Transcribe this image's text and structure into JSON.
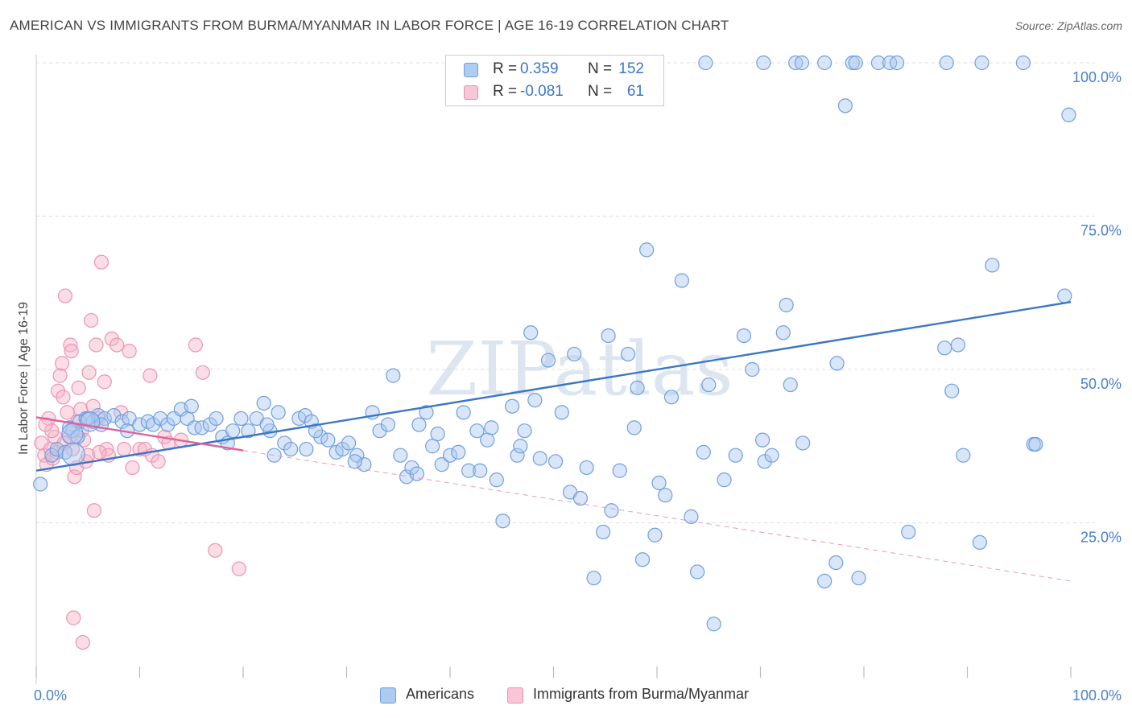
{
  "header": {
    "title": "AMERICAN VS IMMIGRANTS FROM BURMA/MYANMAR IN LABOR FORCE | AGE 16-19 CORRELATION CHART",
    "source": "Source: ZipAtlas.com"
  },
  "legend": {
    "r_label": "R =",
    "n_label": "N =",
    "rows": [
      {
        "r": "0.359",
        "n": "152",
        "fill": "#aecbf0",
        "stroke": "#6a9fe0"
      },
      {
        "r": "-0.081",
        "n": "61",
        "fill": "#f8c6d6",
        "stroke": "#e891ae"
      }
    ]
  },
  "bottom_legend": [
    {
      "label": "Americans",
      "fill": "#aecbf0",
      "stroke": "#6a9fe0"
    },
    {
      "label": "Immigrants from Burma/Myanmar",
      "fill": "#f8c6d6",
      "stroke": "#e891ae"
    }
  ],
  "chart_data": {
    "type": "scatter",
    "ylabel": "In Labor Force | Age 16-19",
    "xlabel": "",
    "x_ticks": [
      "0.0%",
      "100.0%"
    ],
    "y_ticks": [
      "25.0%",
      "50.0%",
      "75.0%",
      "100.0%"
    ],
    "xlim": [
      0,
      100
    ],
    "ylim": [
      0,
      100
    ],
    "grid": true,
    "watermark": "ZIPatlas",
    "colors": {
      "americans": "#3b76c9",
      "burma": "#e0609a"
    },
    "series": [
      {
        "name": "Americans",
        "trend": {
          "x0": 0,
          "y0": 33.5,
          "x1": 100,
          "y1": 61
        },
        "points": [
          [
            0.4,
            31.3
          ],
          [
            1.5,
            36
          ],
          [
            2,
            37
          ],
          [
            2.8,
            36.5
          ],
          [
            3.5,
            40
          ],
          [
            4.2,
            41.5
          ],
          [
            4.8,
            42
          ],
          [
            5.5,
            41.5
          ],
          [
            6,
            42.5
          ],
          [
            6.6,
            42
          ],
          [
            7.5,
            42.5
          ],
          [
            8.3,
            41.5
          ],
          [
            9,
            42
          ],
          [
            10,
            41
          ],
          [
            10.8,
            41.5
          ],
          [
            11.3,
            41
          ],
          [
            12,
            42
          ],
          [
            12.7,
            41
          ],
          [
            13.3,
            42
          ],
          [
            14,
            43.5
          ],
          [
            14.6,
            42
          ],
          [
            15.3,
            40.5
          ],
          [
            16,
            40.5
          ],
          [
            16.8,
            41
          ],
          [
            17.4,
            42
          ],
          [
            18,
            39
          ],
          [
            18.5,
            38
          ],
          [
            19,
            40
          ],
          [
            19.8,
            42
          ],
          [
            20.5,
            40
          ],
          [
            21.3,
            42
          ],
          [
            22,
            44.5
          ],
          [
            22.6,
            40
          ],
          [
            23.4,
            43
          ],
          [
            24,
            38
          ],
          [
            24.6,
            37
          ],
          [
            25.4,
            42
          ],
          [
            26,
            42.5
          ],
          [
            26.6,
            41.5
          ],
          [
            27.5,
            39
          ],
          [
            28.2,
            38.5
          ],
          [
            29,
            36.5
          ],
          [
            29.6,
            37
          ],
          [
            30.2,
            38
          ],
          [
            31,
            36
          ],
          [
            31.7,
            34.5
          ],
          [
            32.5,
            43
          ],
          [
            33.2,
            40
          ],
          [
            34,
            41
          ],
          [
            34.5,
            49
          ],
          [
            35.2,
            36
          ],
          [
            35.8,
            32.5
          ],
          [
            36.3,
            34
          ],
          [
            37,
            41
          ],
          [
            37.7,
            43
          ],
          [
            38.3,
            37.5
          ],
          [
            38.8,
            39.5
          ],
          [
            39.2,
            34.5
          ],
          [
            40,
            36
          ],
          [
            40.8,
            36.5
          ],
          [
            41.3,
            43
          ],
          [
            41.8,
            33.5
          ],
          [
            42.6,
            40
          ],
          [
            42.9,
            33.5
          ],
          [
            43.6,
            38.5
          ],
          [
            44,
            40.5
          ],
          [
            45.1,
            25.3
          ],
          [
            46,
            44
          ],
          [
            46.5,
            36
          ],
          [
            47.2,
            40
          ],
          [
            47.8,
            56
          ],
          [
            48.2,
            45
          ],
          [
            48.7,
            35.5
          ],
          [
            49.5,
            51.5
          ],
          [
            50.2,
            35
          ],
          [
            50.8,
            43
          ],
          [
            51.6,
            30
          ],
          [
            52,
            52.5
          ],
          [
            52.6,
            29
          ],
          [
            53.9,
            16
          ],
          [
            54.8,
            23.5
          ],
          [
            55.3,
            55.5
          ],
          [
            56.4,
            33.5
          ],
          [
            57.2,
            52.5
          ],
          [
            57.8,
            40.5
          ],
          [
            58.1,
            47
          ],
          [
            58.6,
            19
          ],
          [
            59,
            69.5
          ],
          [
            59.8,
            23
          ],
          [
            60.2,
            31.5
          ],
          [
            60.8,
            29.5
          ],
          [
            61.4,
            45.5
          ],
          [
            62.4,
            64.5
          ],
          [
            63.3,
            26
          ],
          [
            63.9,
            17
          ],
          [
            64.5,
            36.5
          ],
          [
            65,
            47.5
          ],
          [
            65.5,
            8.5
          ],
          [
            66.5,
            32
          ],
          [
            68.4,
            55.5
          ],
          [
            69.2,
            50
          ],
          [
            70.2,
            38.5
          ],
          [
            70.4,
            35
          ],
          [
            71.1,
            36
          ],
          [
            72.2,
            56
          ],
          [
            72.5,
            60.5
          ],
          [
            72.9,
            47.5
          ],
          [
            74.1,
            38
          ],
          [
            76.2,
            15.5
          ],
          [
            77.3,
            18.5
          ],
          [
            77.4,
            51
          ],
          [
            78.2,
            93
          ],
          [
            79.5,
            16
          ],
          [
            84.3,
            23.5
          ],
          [
            87.8,
            53.5
          ],
          [
            88.5,
            46.5
          ],
          [
            89.1,
            54
          ],
          [
            89.6,
            36
          ],
          [
            91.2,
            21.8
          ],
          [
            92.4,
            67
          ],
          [
            96.4,
            37.8
          ],
          [
            96.6,
            37.8
          ],
          [
            99.4,
            62
          ],
          [
            99.8,
            91.5
          ],
          [
            64.7,
            100
          ],
          [
            70.3,
            100
          ],
          [
            73.4,
            100
          ],
          [
            74,
            100
          ],
          [
            76.2,
            100
          ],
          [
            78.9,
            100
          ],
          [
            79.2,
            100
          ],
          [
            81.4,
            100
          ],
          [
            82.5,
            100
          ],
          [
            83.2,
            100
          ],
          [
            88,
            100
          ],
          [
            91.4,
            100
          ],
          [
            95.4,
            100
          ],
          [
            47.6,
            100
          ],
          [
            3.2,
            40.5
          ],
          [
            4,
            39
          ],
          [
            5,
            42
          ],
          [
            6.3,
            41
          ],
          [
            8.8,
            40
          ],
          [
            15,
            44
          ],
          [
            23,
            36
          ],
          [
            27,
            40
          ],
          [
            30.8,
            35
          ],
          [
            36.8,
            33
          ],
          [
            44.5,
            32
          ],
          [
            46.8,
            37.5
          ],
          [
            53.2,
            34
          ],
          [
            55.6,
            27
          ],
          [
            67.6,
            36
          ],
          [
            26.1,
            37
          ],
          [
            22.3,
            41
          ]
        ]
      },
      {
        "name": "Immigrants from Burma/Myanmar",
        "trend": {
          "x0": 0,
          "y0": 42.2,
          "x1": 20,
          "y1": 36.8,
          "dash_x1": 100,
          "dash_y1": 15.5
        },
        "points": [
          [
            0.5,
            38
          ],
          [
            0.8,
            36
          ],
          [
            1,
            34.5
          ],
          [
            1.2,
            42
          ],
          [
            1.4,
            37
          ],
          [
            1.6,
            35.5
          ],
          [
            1.8,
            39
          ],
          [
            2,
            36.5
          ],
          [
            2.1,
            46.5
          ],
          [
            2.3,
            49
          ],
          [
            2.5,
            51
          ],
          [
            2.6,
            45.5
          ],
          [
            2.8,
            62
          ],
          [
            3,
            43
          ],
          [
            3.2,
            39
          ],
          [
            3.3,
            54
          ],
          [
            3.4,
            53
          ],
          [
            3.5,
            37
          ],
          [
            3.7,
            32.5
          ],
          [
            3.9,
            34
          ],
          [
            4,
            41.5
          ],
          [
            4.1,
            47
          ],
          [
            4.3,
            43.5
          ],
          [
            4.4,
            40
          ],
          [
            4.6,
            38.5
          ],
          [
            4.8,
            35
          ],
          [
            5,
            36
          ],
          [
            5.1,
            49.5
          ],
          [
            5.3,
            58
          ],
          [
            5.5,
            44
          ],
          [
            5.6,
            27
          ],
          [
            5.8,
            54
          ],
          [
            6,
            42
          ],
          [
            6.3,
            67.5
          ],
          [
            6.6,
            48
          ],
          [
            6.8,
            37
          ],
          [
            7,
            36
          ],
          [
            7.3,
            55
          ],
          [
            7.8,
            54
          ],
          [
            8.2,
            43
          ],
          [
            8.5,
            37
          ],
          [
            9,
            53
          ],
          [
            9.3,
            34
          ],
          [
            10,
            37
          ],
          [
            10.5,
            37
          ],
          [
            11,
            49
          ],
          [
            11.2,
            36
          ],
          [
            11.8,
            35
          ],
          [
            12.4,
            39
          ],
          [
            12.8,
            38
          ],
          [
            14,
            38.5
          ],
          [
            15.4,
            54
          ],
          [
            16.1,
            49.5
          ],
          [
            17.3,
            20.5
          ],
          [
            19.6,
            17.5
          ],
          [
            3.6,
            9.5
          ],
          [
            4.5,
            5.5
          ],
          [
            2.7,
            38
          ],
          [
            1.5,
            40
          ],
          [
            0.9,
            41
          ],
          [
            6.1,
            36.5
          ]
        ]
      }
    ]
  }
}
